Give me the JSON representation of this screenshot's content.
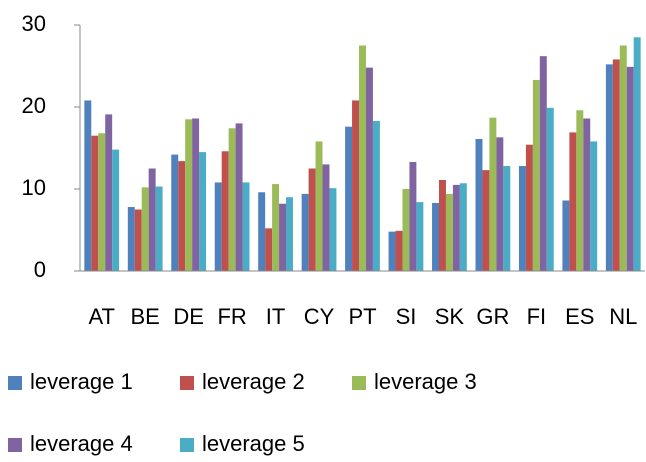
{
  "chart_data": {
    "type": "bar",
    "categories": [
      "AT",
      "BE",
      "DE",
      "FR",
      "IT",
      "CY",
      "PT",
      "SI",
      "SK",
      "GR",
      "FI",
      "ES",
      "NL"
    ],
    "series": [
      {
        "name": "leverage 1",
        "color": "#4f81bd",
        "values": [
          20.8,
          7.8,
          14.2,
          10.8,
          9.6,
          9.4,
          17.6,
          4.8,
          8.3,
          16.1,
          12.8,
          8.6,
          25.2
        ]
      },
      {
        "name": "leverage 2",
        "color": "#c0504d",
        "values": [
          16.5,
          7.5,
          13.4,
          14.6,
          5.2,
          12.5,
          20.8,
          4.9,
          11.1,
          12.3,
          15.4,
          16.9,
          25.8
        ]
      },
      {
        "name": "leverage 3",
        "color": "#9bbb59",
        "values": [
          16.8,
          10.2,
          18.5,
          17.4,
          10.6,
          15.8,
          27.5,
          10.0,
          9.4,
          18.7,
          23.3,
          19.6,
          27.5
        ]
      },
      {
        "name": "leverage 4",
        "color": "#8064a2",
        "values": [
          19.1,
          12.5,
          18.6,
          18.0,
          8.2,
          13.0,
          24.8,
          13.3,
          10.5,
          16.3,
          26.2,
          18.6,
          24.9
        ]
      },
      {
        "name": "leverage 5",
        "color": "#4bacc6",
        "values": [
          14.8,
          10.3,
          14.5,
          10.8,
          9.0,
          10.1,
          18.3,
          8.4,
          10.7,
          12.8,
          19.9,
          15.8,
          28.5
        ]
      }
    ],
    "ylim": [
      0,
      30
    ],
    "yticks": [
      0,
      10,
      20,
      30
    ],
    "grid": false,
    "legend": "bottom"
  }
}
